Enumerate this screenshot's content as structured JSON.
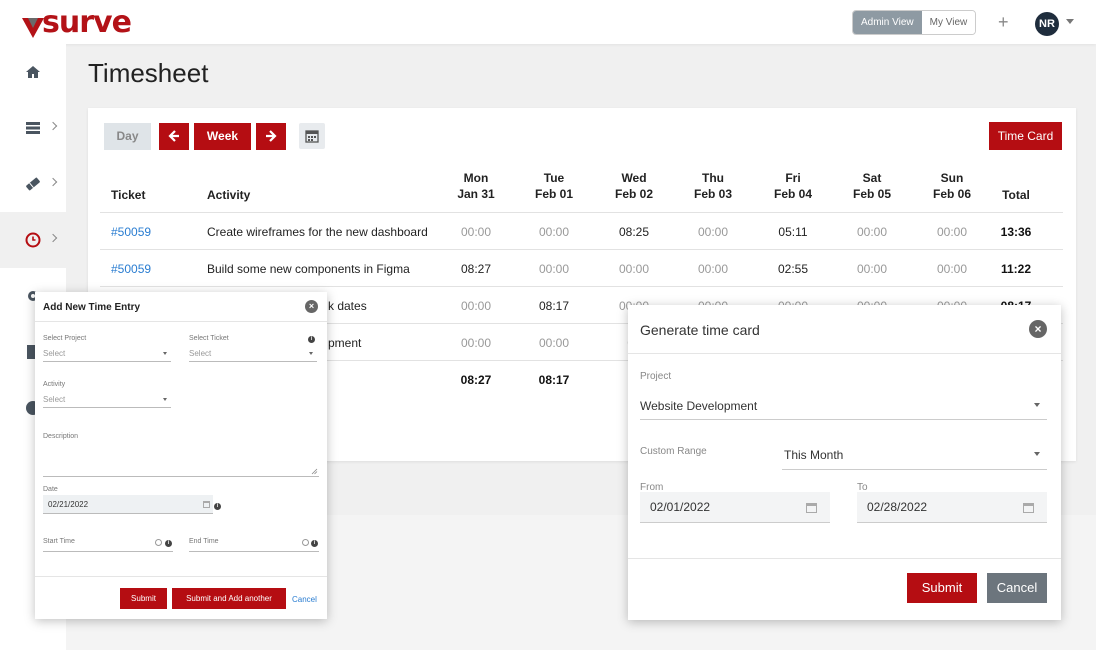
{
  "app": {
    "logo_text": "surve"
  },
  "header": {
    "admin_view": "Admin View",
    "my_view": "My View",
    "plus": "+",
    "avatar_initials": "NR"
  },
  "sidebar": {
    "items": [
      {
        "icon": "home-icon"
      },
      {
        "icon": "server-icon"
      },
      {
        "icon": "ticket-icon"
      },
      {
        "icon": "clock-icon",
        "active": true
      },
      {
        "icon": "gear-icon"
      },
      {
        "icon": "document-icon"
      },
      {
        "icon": "help-icon"
      }
    ]
  },
  "page": {
    "title": "Timesheet"
  },
  "toolbar": {
    "day": "Day",
    "prev": "←",
    "week": "Week",
    "next": "→",
    "time_card": "Time Card"
  },
  "table": {
    "headers": {
      "ticket": "Ticket",
      "activity": "Activity",
      "days": [
        {
          "name": "Mon",
          "date": "Jan 31"
        },
        {
          "name": "Tue",
          "date": "Feb 01"
        },
        {
          "name": "Wed",
          "date": "Feb 02"
        },
        {
          "name": "Thu",
          "date": "Feb 03"
        },
        {
          "name": "Fri",
          "date": "Feb 04"
        },
        {
          "name": "Sat",
          "date": "Feb 05"
        },
        {
          "name": "Sun",
          "date": "Feb 06"
        }
      ],
      "total": "Total"
    },
    "rows": [
      {
        "ticket": "#50059",
        "activity": "Create wireframes for the new dashboard",
        "values": [
          "00:00",
          "00:00",
          "08:25",
          "00:00",
          "05:11",
          "00:00",
          "00:00"
        ],
        "total": "13:36"
      },
      {
        "ticket": "#50059",
        "activity": "Build some new components in Figma",
        "values": [
          "08:27",
          "00:00",
          "00:00",
          "00:00",
          "02:55",
          "00:00",
          "00:00"
        ],
        "total": "11:22"
      },
      {
        "ticket": "",
        "activity": "k dates",
        "values": [
          "00:00",
          "08:17",
          "00:00",
          "00:00",
          "00:00",
          "00:00",
          "00:00"
        ],
        "total": "08:17"
      },
      {
        "ticket": "",
        "activity": "pment",
        "values": [
          "00:00",
          "00:00",
          "00",
          "",
          "",
          "",
          ""
        ],
        "total": ""
      }
    ],
    "totals": [
      "08:27",
      "08:17",
      "0",
      "",
      "",
      "",
      ""
    ]
  },
  "add_entry_modal": {
    "title": "Add New Time Entry",
    "close": "×",
    "project_label": "Select Project",
    "project_value": "Select",
    "ticket_label": "Select Ticket",
    "ticket_value": "Select",
    "activity_label": "Activity",
    "activity_value": "Select",
    "description_label": "Description",
    "date_label": "Date",
    "date_value": "02/21/2022",
    "start_label": "Start Time",
    "end_label": "End Time",
    "submit": "Submit",
    "submit_another": "Submit and Add another",
    "cancel": "Cancel"
  },
  "time_card_modal": {
    "title": "Generate time card",
    "close": "×",
    "project_label": "Project",
    "project_value": "Website Development",
    "range_label": "Custom Range",
    "range_value": "This Month",
    "from_label": "From",
    "from_value": "02/01/2022",
    "to_label": "To",
    "to_value": "02/28/2022",
    "submit": "Submit",
    "cancel": "Cancel"
  },
  "colors": {
    "brand_red": "#b50d12",
    "link_blue": "#2a7dd1",
    "navy": "#1f2d3d"
  }
}
